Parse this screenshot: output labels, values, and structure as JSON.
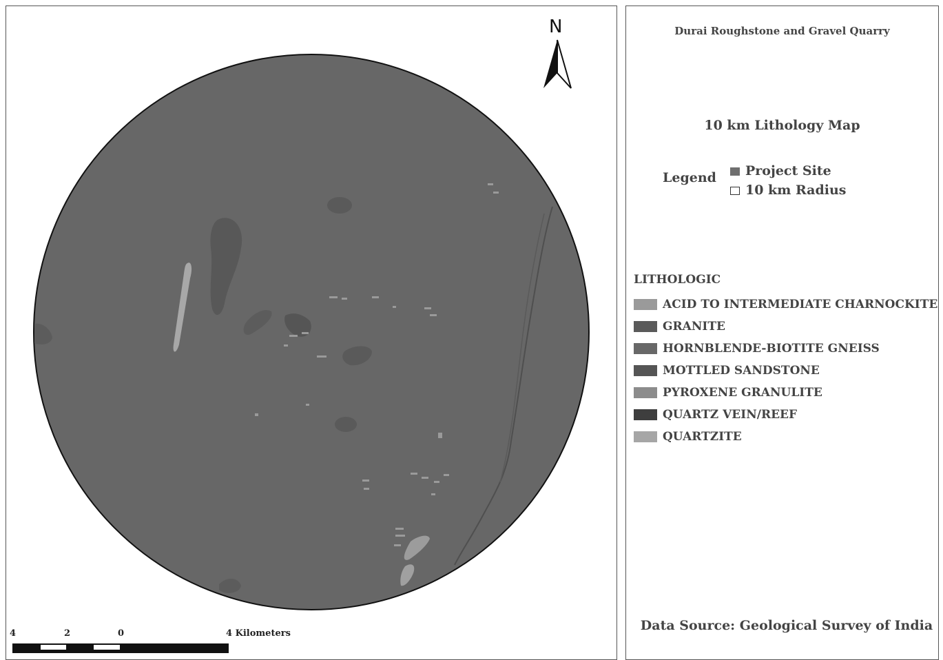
{
  "map": {
    "north_label": "N",
    "scale": {
      "labels": [
        "4",
        "2",
        "0",
        "4 Kilometers"
      ]
    }
  },
  "panel": {
    "title": "Durai Roughstone and Gravel Quarry",
    "subtitle": "10 km Lithology  Map",
    "legend_label": "Legend",
    "legend_items": [
      {
        "label": "Project Site",
        "color": "#6f6f6f"
      },
      {
        "label": "10 km Radius",
        "color": "#ffffff"
      }
    ],
    "lithologic_heading": "LITHOLOGIC",
    "lithologic_items": [
      {
        "label": "ACID TO INTERMEDIATE CHARNOCKITE",
        "color": "#9a9a9a"
      },
      {
        "label": "GRANITE",
        "color": "#5a5a5a"
      },
      {
        "label": "HORNBLENDE-BIOTITE GNEISS",
        "color": "#686868"
      },
      {
        "label": "MOTTLED SANDSTONE",
        "color": "#555555"
      },
      {
        "label": "PYROXENE GRANULITE",
        "color": "#8c8c8c"
      },
      {
        "label": "QUARTZ VEIN/REEF",
        "color": "#3e3e3e"
      },
      {
        "label": "QUARTZITE",
        "color": "#a6a6a6"
      }
    ],
    "data_source": "Data Source: Geological Survey of India"
  }
}
